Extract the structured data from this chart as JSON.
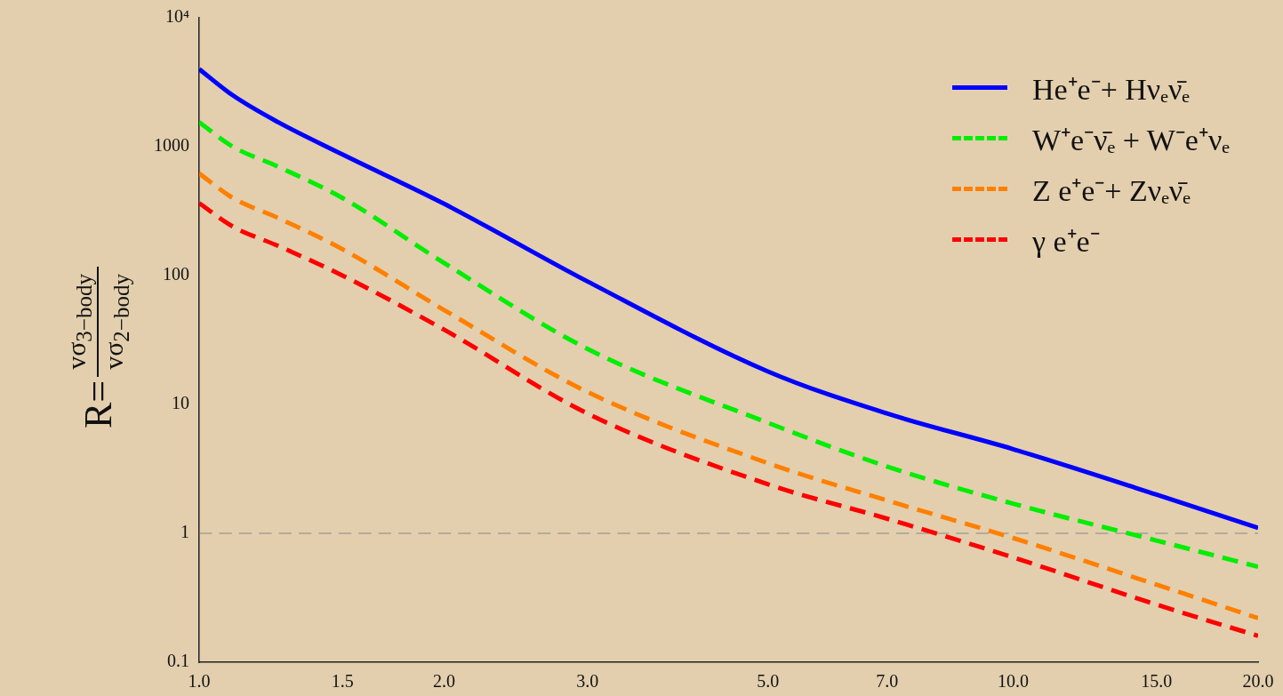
{
  "chart_data": {
    "type": "line",
    "ylabel": "R=",
    "annotations": [
      "vσ$_{3−body}$",
      "vσ$_{2−body}$"
    ],
    "x": [
      1,
      1.1,
      1.25,
      1.5,
      2,
      3,
      5,
      7,
      10,
      15,
      20
    ],
    "series": [
      {
        "name": "He⁺e⁻+ Hνₑν̄ₑ",
        "color": "#0000ff",
        "line_style": "solid",
        "values": [
          4000,
          2500,
          1550,
          870,
          360,
          90,
          18,
          8.5,
          4.5,
          2,
          1.1
        ]
      },
      {
        "name": "W⁺e⁻ν̄ₑ + W⁻e⁺νₑ",
        "color": "#00ee00",
        "line_style": "dashed",
        "values": [
          1550,
          1000,
          700,
          400,
          125,
          27,
          7.2,
          3.3,
          1.7,
          0.88,
          0.55
        ]
      },
      {
        "name": "Z e⁺e⁻+ Zνₑν̄ₑ",
        "color": "#ff8000",
        "line_style": "dashed",
        "values": [
          620,
          400,
          280,
          160,
          54,
          12.5,
          3.5,
          1.8,
          0.92,
          0.4,
          0.22
        ]
      },
      {
        "name": "γ e⁺e⁻",
        "color": "#ff0000",
        "line_style": "dashed",
        "values": [
          365,
          240,
          170,
          100,
          38,
          8.5,
          2.4,
          1.3,
          0.65,
          0.28,
          0.16
        ]
      }
    ],
    "log": "xy",
    "xlim": [
      1,
      20
    ],
    "ylim": [
      0.1,
      10000
    ],
    "xticks": [
      {
        "value": 1,
        "label": "1.0"
      },
      {
        "value": 1.5,
        "label": "1.5"
      },
      {
        "value": 2,
        "label": "2.0"
      },
      {
        "value": 3,
        "label": "3.0"
      },
      {
        "value": 5,
        "label": "5.0"
      },
      {
        "value": 7,
        "label": "7.0"
      },
      {
        "value": 10,
        "label": "10.0"
      },
      {
        "value": 15,
        "label": "15.0"
      },
      {
        "value": 20,
        "label": "20.0"
      }
    ],
    "yticks": [
      0.1,
      1,
      10,
      100,
      1000,
      {
        "value": 10000,
        "label": "10⁴"
      }
    ],
    "ref_lines": [
      {
        "axis": "y",
        "value": 1,
        "color": "#888888",
        "line_style": "dashed"
      }
    ],
    "grid": false,
    "legend": "top right"
  }
}
